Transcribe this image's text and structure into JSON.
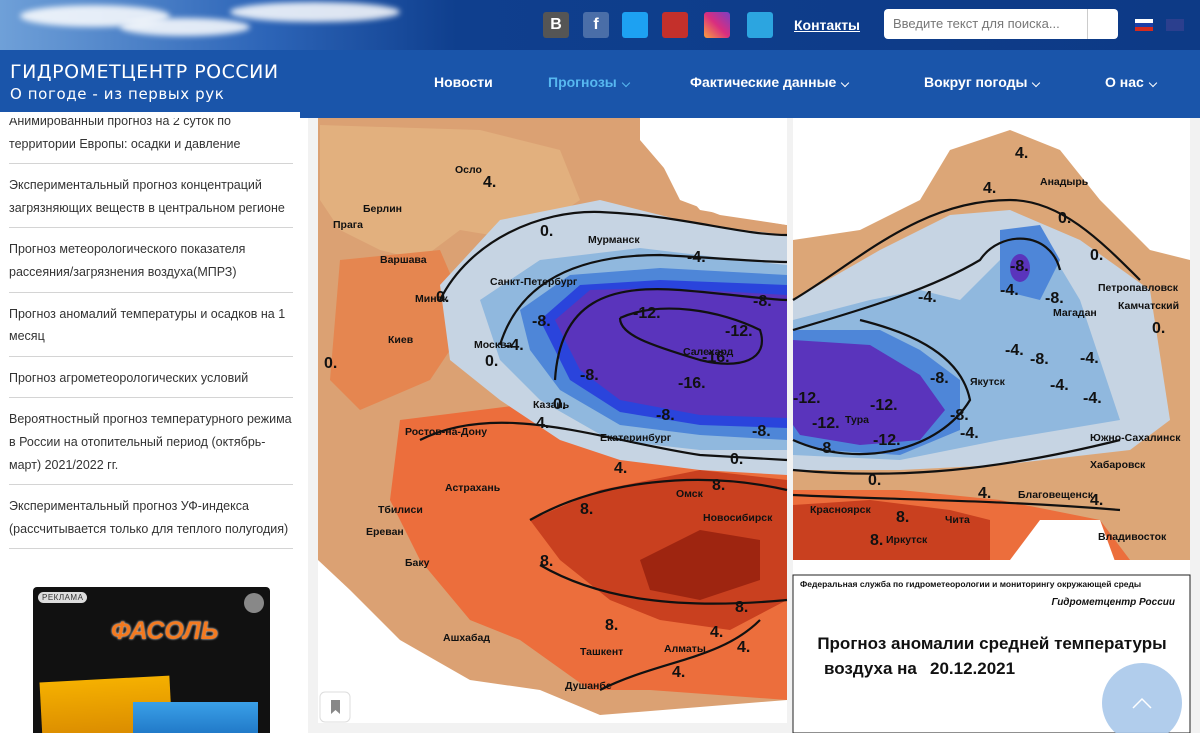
{
  "header": {
    "social": [
      "B",
      "f"
    ],
    "contacts": "Контакты",
    "search_placeholder": "Введите текст для поиска...",
    "site_title": "ГИДРОМЕТЦЕНТР РОССИИ",
    "site_subtitle": "О погоде - из первых рук",
    "nav": [
      "Новости",
      "Прогнозы",
      "Фактические данные",
      "Вокруг погоды",
      "О нас"
    ]
  },
  "sidebar": {
    "links": [
      "Анимированный прогноз на 2 суток по территории Европы: осадки и давление",
      "Экспериментальный прогноз концентраций загрязняющих веществ в центральном регионе",
      "Прогноз метеорологического показателя рассеяния/загрязнения воздуха(МПРЗ)",
      "Прогноз аномалий температуры и осадков на 1 месяц",
      "Прогноз агрометеорологических условий",
      "Вероятностный прогноз температурного режима в России на отопительный период (октябрь-март) 2021/2022 гг.",
      "Экспериментальный прогноз УФ-индекса (рассчитывается только для теплого полугодия)"
    ],
    "ad": {
      "tag": "РЕКЛАМА",
      "brand": "ФАСОЛЬ"
    }
  },
  "map": {
    "left": {
      "cities": [
        "Осло",
        "Берлин",
        "Прага",
        "Варшава",
        "Минск",
        "Киев",
        "Мурманск",
        "Санкт-Петербург",
        "Москва",
        "Казань",
        "Ростов-на-Дону",
        "Екатеринбург",
        "Салехард",
        "Астрахань",
        "Тбилиси",
        "Ереван",
        "Омск",
        "Новосибирск",
        "Баку",
        "Ашхабад",
        "Ташкент",
        "Алматы",
        "Душанбе"
      ],
      "contours": [
        "4.",
        "0.",
        "-4.",
        "-8.",
        "-12.",
        "-12.",
        "-16.",
        "-16.",
        "-8.",
        "-4.",
        "0.",
        "-8.",
        "0.",
        "-8.",
        "-8.",
        "0.",
        "4.",
        "4.",
        "8.",
        "8.",
        "8.",
        "8.",
        "8.",
        "4.",
        "4.",
        "4.",
        "0.",
        "0."
      ]
    },
    "right": {
      "cities": [
        "Анадырь",
        "Петропавловск",
        "Камчатский",
        "Магадан",
        "Якутск",
        "Тура",
        "Южно-Сахалинск",
        "Хабаровск",
        "Благовещенск",
        "Чита",
        "Иркутск",
        "Красноярск",
        "Владивосток"
      ],
      "contours": [
        "4.",
        "4.",
        "0.",
        "-8.",
        "-4.",
        "-4.",
        "0.",
        "-8.",
        "-4.",
        "-8.",
        "-4.",
        "-4.",
        "0.",
        "-8.",
        "-12.",
        "-12.",
        "-12.",
        "-12.",
        "-8.",
        "-8.",
        "-4.",
        "0.",
        "4.",
        "4.",
        "8.",
        "8.",
        "-4."
      ]
    },
    "caption": {
      "agency": "Федеральная служба по гидрометеорологии и мониторингу окружающей среды",
      "center": "Гидрометцентр России",
      "title_line1": "Прогноз аномалии средней температуры",
      "title_line2": "воздуха на",
      "date": "20.12.2021"
    }
  }
}
